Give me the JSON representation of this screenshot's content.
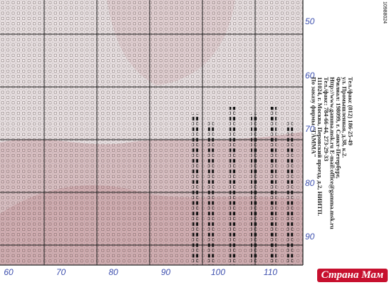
{
  "row_numbers": [
    "50",
    "60",
    "70",
    "80",
    "90"
  ],
  "column_numbers": [
    "60",
    "70",
    "80",
    "90",
    "100",
    "110"
  ],
  "publisher": {
    "lines": [
      "По заказу фирмы \"ГАММА\"",
      "111024, г. Москва, Перовский проезд, д.2, НИИТП.",
      "Тел./факс: 784-66-44, 273-29-33",
      "Http://www.gamma.msk.ru  E-mail:office@gamma.msk.ru",
      "Филиал: 198099, г. Санкт-Петербург,",
      "ул. Промышленная, д.38, к.2.",
      "Тел./факс (812) 186-25-49"
    ]
  },
  "code": "10988024",
  "watermark": "Страна Мам"
}
